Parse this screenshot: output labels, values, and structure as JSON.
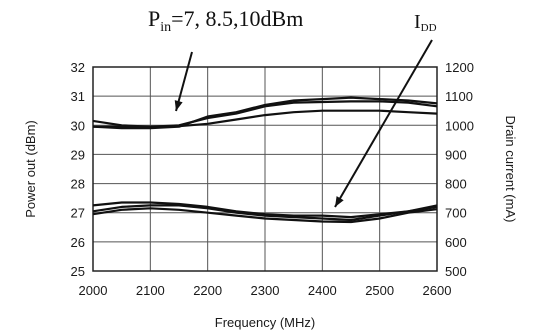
{
  "chart_data": {
    "type": "line",
    "title": "",
    "xlabel": "Frequency (MHz)",
    "ylabel_left": "Power out (dBm)",
    "ylabel_right": "Drain current (mA)",
    "x_ticks": [
      "2000",
      "2100",
      "2200",
      "2300",
      "2400",
      "2500",
      "2600"
    ],
    "y_left_ticks": [
      "25",
      "26",
      "27",
      "28",
      "29",
      "30",
      "31",
      "32"
    ],
    "y_right_ticks": [
      "500",
      "600",
      "700",
      "800",
      "900",
      "1000",
      "1100",
      "1200"
    ],
    "xlim": [
      2000,
      2600
    ],
    "ylim_left": [
      25,
      32
    ],
    "ylim_right": [
      500,
      1200
    ],
    "grid": true,
    "annotations": {
      "pin": {
        "base": "P",
        "sub": "in",
        "rest": "=7, 8.5,10dBm"
      },
      "ids": {
        "base": "I",
        "sub": "DD"
      }
    },
    "series": [
      {
        "axis": "left",
        "x": [
          2000,
          2050,
          2100,
          2150,
          2200,
          2250,
          2300,
          2350,
          2400,
          2450,
          2500,
          2550,
          2600
        ],
        "y": [
          30.15,
          30.0,
          29.95,
          29.97,
          30.05,
          30.2,
          30.35,
          30.45,
          30.5,
          30.5,
          30.5,
          30.45,
          30.4
        ]
      },
      {
        "axis": "left",
        "x": [
          2000,
          2050,
          2100,
          2150,
          2200,
          2250,
          2300,
          2350,
          2400,
          2450,
          2500,
          2550,
          2600
        ],
        "y": [
          29.95,
          29.95,
          29.95,
          30.0,
          30.25,
          30.4,
          30.65,
          30.78,
          30.8,
          30.82,
          30.82,
          30.78,
          30.65
        ]
      },
      {
        "axis": "left",
        "x": [
          2000,
          2050,
          2100,
          2150,
          2200,
          2250,
          2300,
          2350,
          2400,
          2450,
          2500,
          2550,
          2600
        ],
        "y": [
          29.95,
          29.9,
          29.9,
          29.95,
          30.3,
          30.45,
          30.7,
          30.85,
          30.9,
          30.95,
          30.9,
          30.85,
          30.75
        ]
      },
      {
        "axis": "right",
        "x": [
          2000,
          2050,
          2100,
          2150,
          2200,
          2250,
          2300,
          2350,
          2400,
          2450,
          2500,
          2550,
          2600
        ],
        "y": [
          725,
          735,
          735,
          730,
          720,
          705,
          695,
          690,
          690,
          685,
          695,
          705,
          725
        ]
      },
      {
        "axis": "right",
        "x": [
          2000,
          2050,
          2100,
          2150,
          2200,
          2250,
          2300,
          2350,
          2400,
          2450,
          2500,
          2550,
          2600
        ],
        "y": [
          705,
          720,
          725,
          725,
          715,
          700,
          690,
          685,
          680,
          675,
          690,
          705,
          720
        ]
      },
      {
        "axis": "right",
        "x": [
          2000,
          2050,
          2100,
          2150,
          2200,
          2250,
          2300,
          2350,
          2400,
          2450,
          2500,
          2550,
          2600
        ],
        "y": [
          695,
          710,
          715,
          710,
          700,
          690,
          680,
          675,
          670,
          668,
          680,
          700,
          712
        ]
      }
    ]
  }
}
